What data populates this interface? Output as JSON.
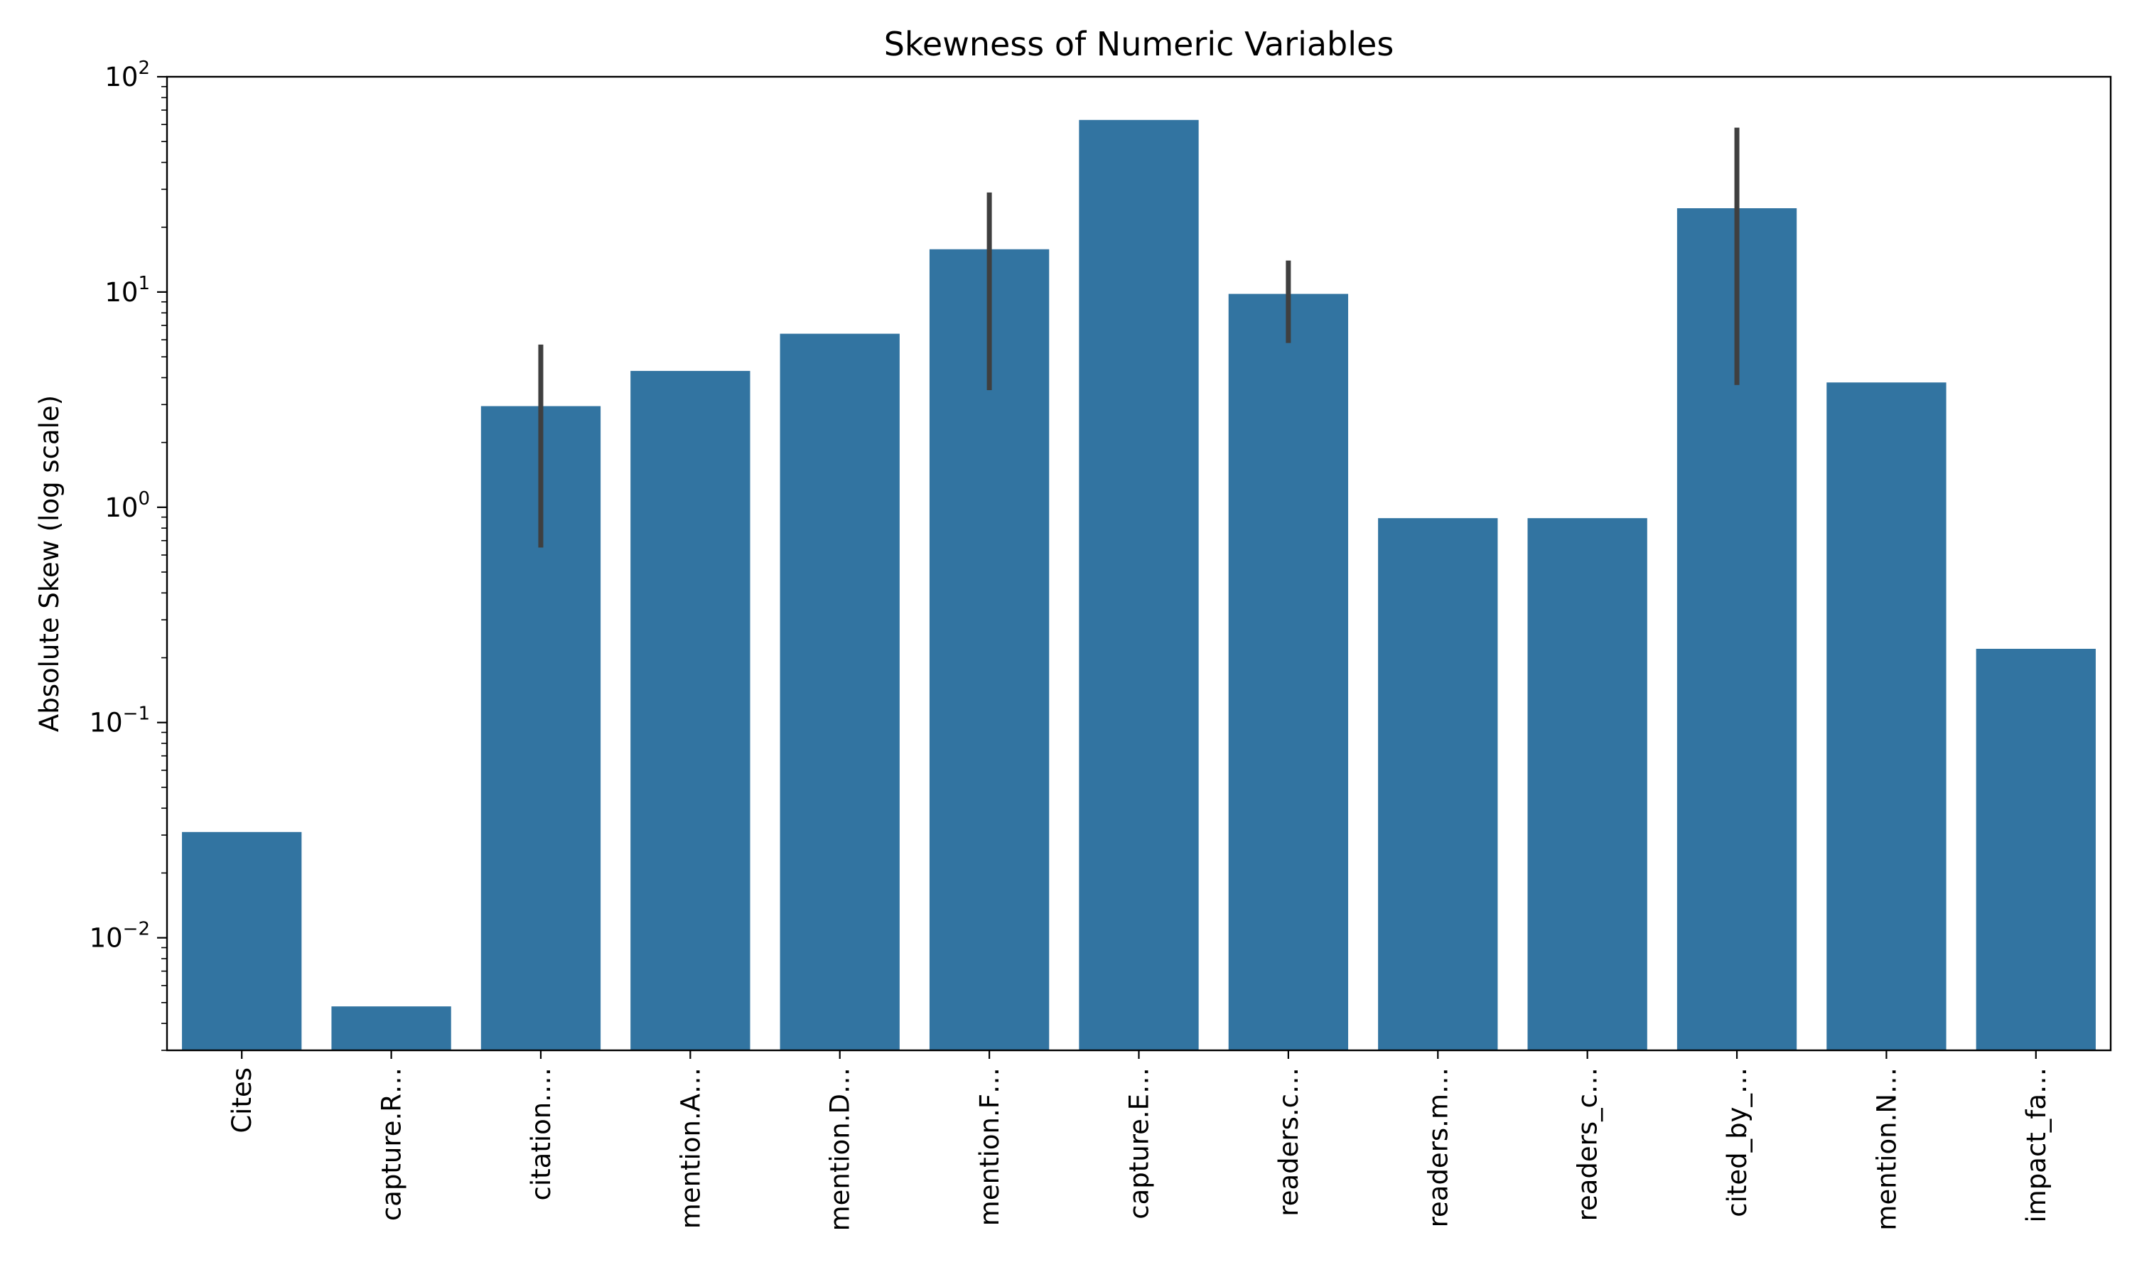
{
  "chart_data": {
    "type": "bar",
    "title": "Skewness of Numeric Variables",
    "xlabel": "",
    "ylabel": "Absolute Skew (log scale)",
    "yscale": "log",
    "ylim": [
      0.003,
      100
    ],
    "y_ticks": [
      {
        "value": 0.01,
        "base": "10",
        "exp": "−2"
      },
      {
        "value": 0.1,
        "base": "10",
        "exp": "−1"
      },
      {
        "value": 1,
        "base": "10",
        "exp": "0"
      },
      {
        "value": 10,
        "base": "10",
        "exp": "1"
      },
      {
        "value": 100,
        "base": "10",
        "exp": "2"
      }
    ],
    "categories": [
      "Cites",
      "capture.R…",
      "citation.…",
      "mention.A…",
      "mention.D…",
      "mention.F…",
      "capture.E…",
      "readers.c…",
      "readers.m…",
      "readers_c…",
      "cited_by_…",
      "mention.N…",
      "impact_fa…"
    ],
    "values": [
      0.031,
      0.0048,
      2.95,
      4.3,
      6.4,
      15.8,
      63,
      9.8,
      0.89,
      0.89,
      24.5,
      3.8,
      0.22
    ],
    "error_bars": [
      null,
      null,
      [
        0.65,
        5.7
      ],
      null,
      null,
      [
        3.5,
        29
      ],
      null,
      [
        5.8,
        14
      ],
      null,
      null,
      [
        3.7,
        58
      ],
      null,
      null
    ],
    "bar_color": "#3274a1",
    "error_color": "#3f3f3f",
    "grid": false,
    "legend": "none"
  }
}
